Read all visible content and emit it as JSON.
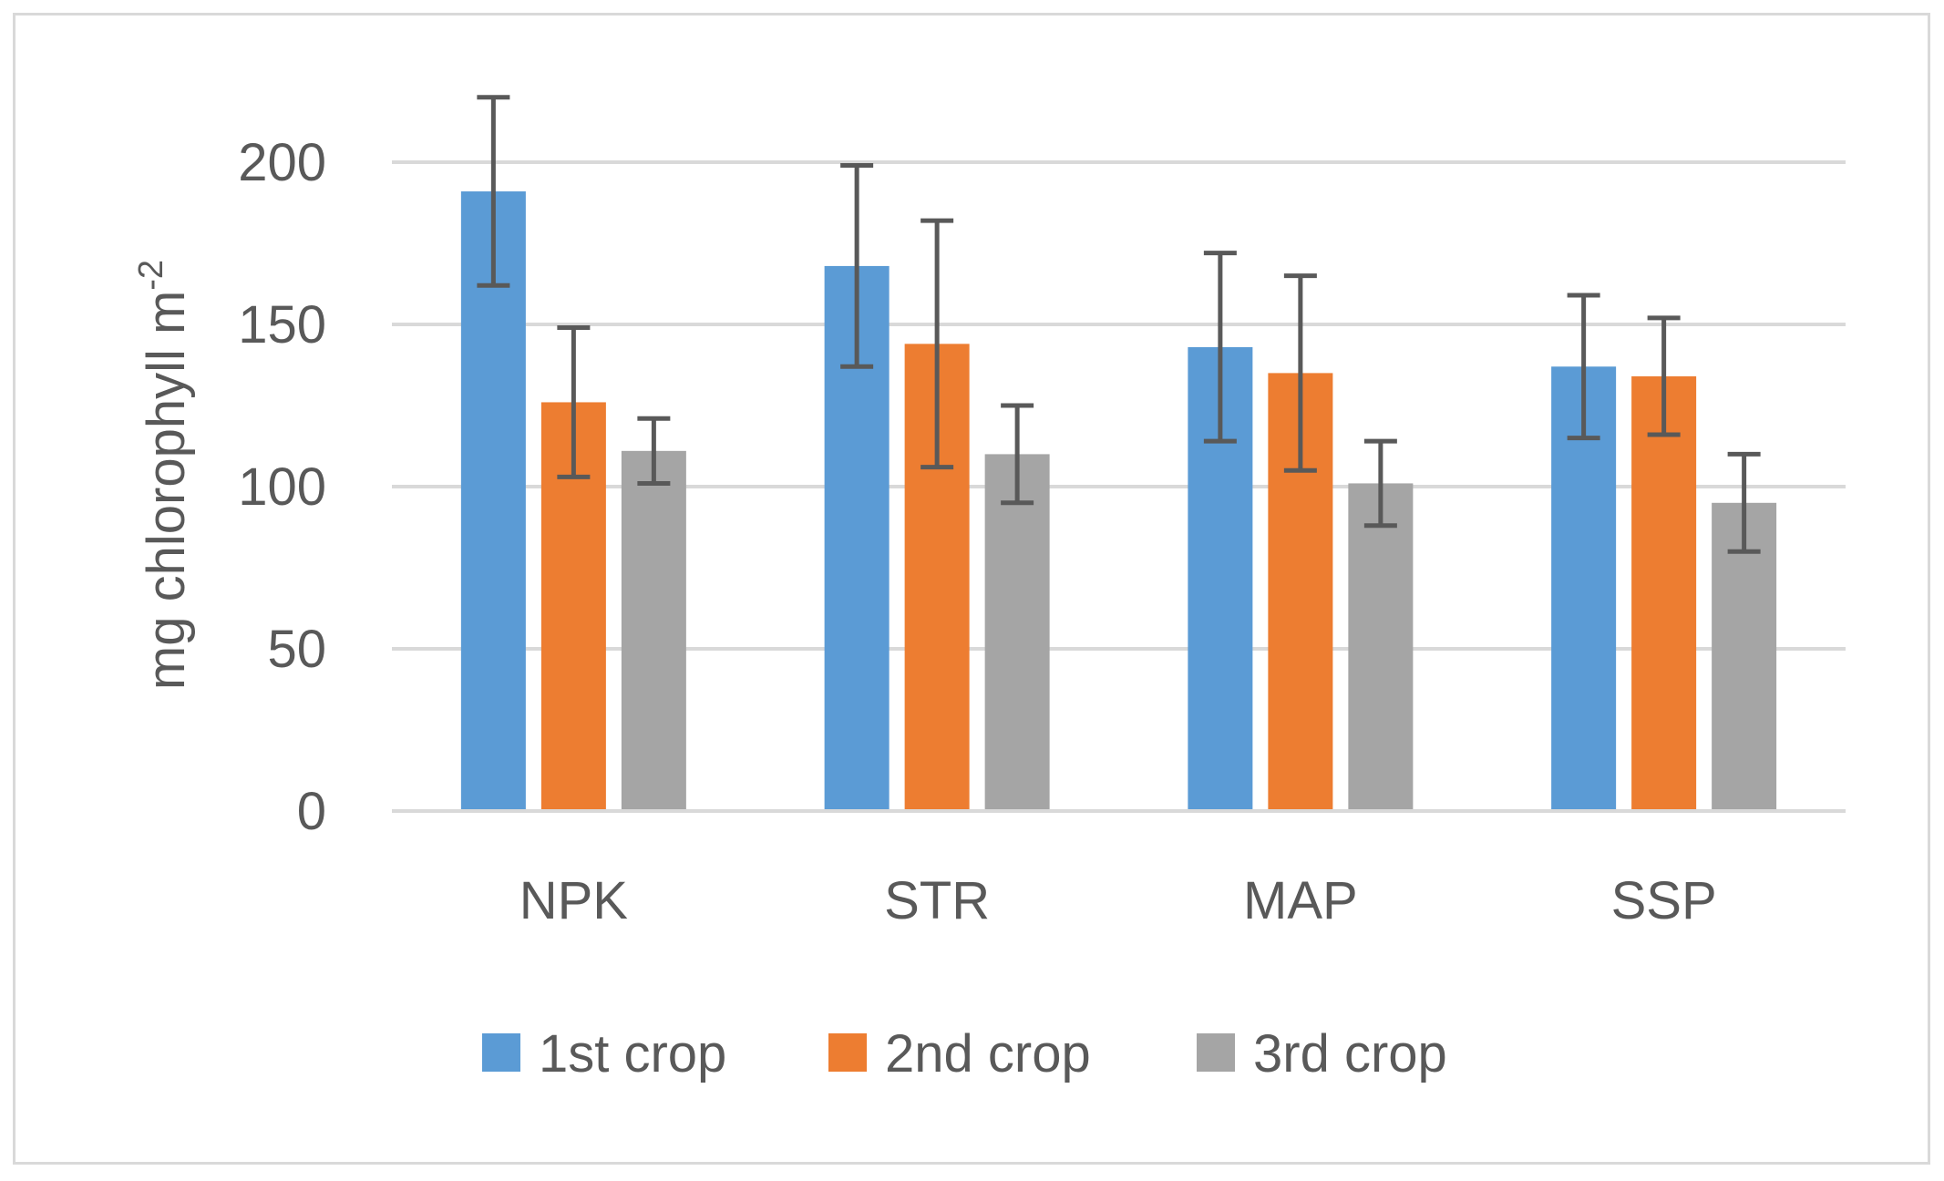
{
  "chart_data": {
    "type": "bar",
    "title": "",
    "xlabel": "",
    "ylabel": "mg chlorophyll m",
    "ylabel_superscript": "-2",
    "ylim": [
      0,
      200
    ],
    "yticks": [
      0,
      50,
      100,
      150,
      200
    ],
    "grid": true,
    "legend_position": "bottom",
    "categories": [
      "NPK",
      "STR",
      "MAP",
      "SSP"
    ],
    "series": [
      {
        "name": "1st crop",
        "color": "#5b9bd5",
        "values": [
          191,
          168,
          143,
          137
        ],
        "errors": [
          29,
          31,
          29,
          22
        ]
      },
      {
        "name": "2nd crop",
        "color": "#ed7d31",
        "values": [
          126,
          144,
          135,
          134
        ],
        "errors": [
          23,
          38,
          30,
          18
        ]
      },
      {
        "name": "3rd crop",
        "color": "#a5a5a5",
        "values": [
          111,
          110,
          101,
          95
        ],
        "errors": [
          10,
          15,
          13,
          15
        ]
      }
    ],
    "error_bar_color": "#595959",
    "grid_color": "#d9d9d9"
  }
}
